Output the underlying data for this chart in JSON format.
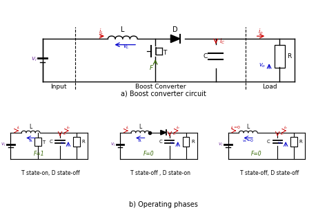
{
  "bg_color": "#ffffff",
  "section_a_label": "a) Boost converter circuit",
  "section_b_label": "b) Operating phases",
  "phase_labels": [
    "T state-on, D state-off",
    "T state-off , D state-on",
    "T state-off, D state-off"
  ],
  "colors": {
    "black": "#000000",
    "red": "#cc0000",
    "blue": "#0000cc",
    "green": "#336600",
    "purple": "#7030a0"
  }
}
